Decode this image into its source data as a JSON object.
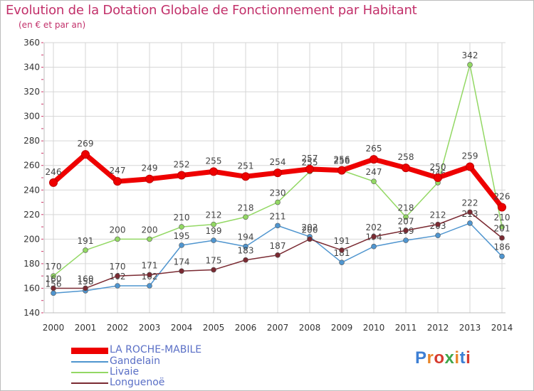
{
  "header": {
    "title": "Evolution de la Dotation Globale de Fonctionnement par Habitant",
    "subtitle": "(en € et par an)"
  },
  "colors": {
    "title": "#c2306a",
    "legend_text": "#5a6fc6",
    "grid": "#d6d6d6",
    "axis_text": "#333333"
  },
  "chart_data": {
    "type": "line",
    "categories": [
      "2000",
      "2001",
      "2002",
      "2003",
      "2004",
      "2005",
      "2006",
      "2007",
      "2008",
      "2009",
      "2010",
      "2011",
      "2012",
      "2013",
      "2014"
    ],
    "ylim": [
      140,
      360
    ],
    "yticks": [
      140,
      160,
      180,
      200,
      220,
      240,
      260,
      280,
      300,
      320,
      340,
      360
    ],
    "grid": true,
    "legend_position": "bottom-left",
    "series": [
      {
        "name": "Gandelain",
        "color": "#4f95cf",
        "values": [
          156,
          158,
          162,
          162,
          195,
          199,
          194,
          211,
          202,
          181,
          194,
          199,
          203,
          213,
          186
        ]
      },
      {
        "name": "Livaie",
        "color": "#93d864",
        "values": [
          170,
          191,
          200,
          200,
          210,
          212,
          218,
          230,
          255,
          256,
          247,
          218,
          246,
          342,
          210
        ]
      },
      {
        "name": "Longuenoë",
        "color": "#7a2a32",
        "values": [
          160,
          160,
          170,
          171,
          174,
          175,
          183,
          187,
          200,
          191,
          202,
          207,
          212,
          222,
          201
        ]
      },
      {
        "name": "LA ROCHE-MABILE",
        "color": "#ee0000",
        "values": [
          246,
          269,
          247,
          249,
          252,
          255,
          251,
          254,
          257,
          256,
          265,
          258,
          250,
          259,
          226
        ]
      }
    ],
    "legend_order": [
      "LA ROCHE-MABILE",
      "Gandelain",
      "Livaie",
      "Longuenoë"
    ]
  },
  "legend": {
    "items": [
      {
        "label": "LA ROCHE-MABILE",
        "color": "#ee0000"
      },
      {
        "label": "Gandelain",
        "color": "#4f95cf"
      },
      {
        "label": "Livaie",
        "color": "#93d864"
      },
      {
        "label": "Longuenoë",
        "color": "#7a2a32"
      }
    ]
  },
  "logo": {
    "letters": [
      "P",
      "r",
      "o",
      "x",
      "i",
      "t",
      "i"
    ],
    "colors": [
      "#3d7fd4",
      "#e9862a",
      "#d63a2f",
      "#3fa64a",
      "#e9862a",
      "#3d7fd4",
      "#d63a2f"
    ]
  }
}
